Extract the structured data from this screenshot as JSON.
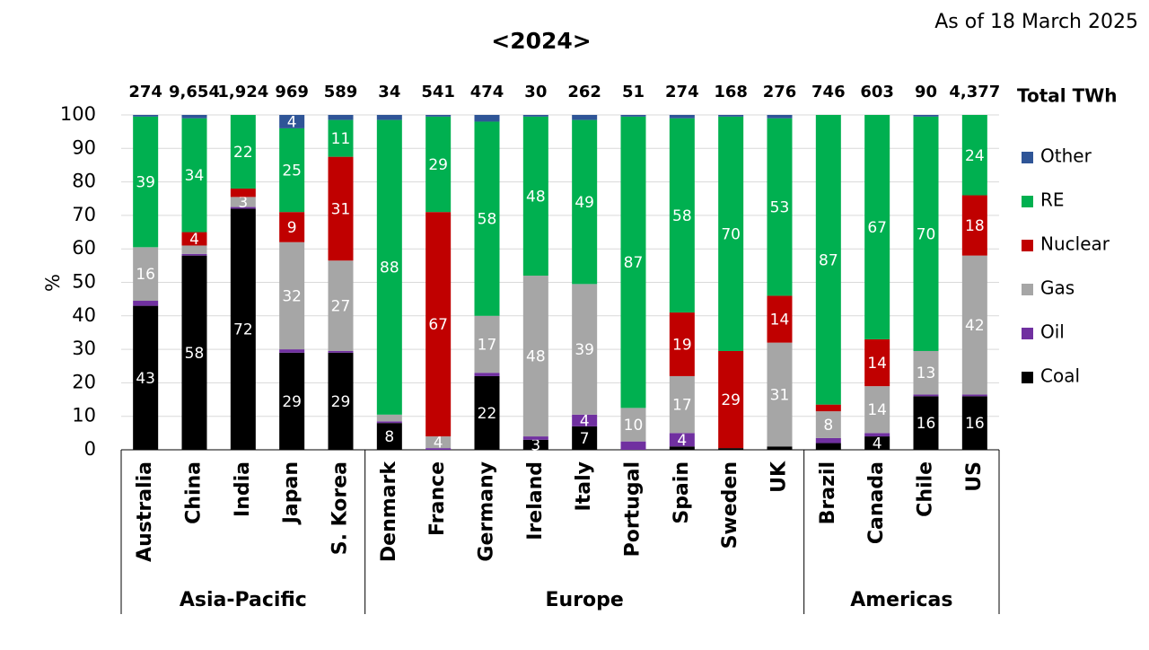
{
  "chart_data": {
    "type": "stacked_bar",
    "title": "<2024>",
    "subtitle": "As of 18 March 2025",
    "y_label": "%",
    "categories": [
      "Australia",
      "China",
      "India",
      "Japan",
      "S. Korea",
      "Denmark",
      "France",
      "Germany",
      "Ireland",
      "Italy",
      "Portugal",
      "Spain",
      "Sweden",
      "UK",
      "Brazil",
      "Canada",
      "Chile",
      "US"
    ],
    "groups": [
      {
        "name": "Asia-Pacific",
        "count": 5
      },
      {
        "name": "Europe",
        "count": 9
      },
      {
        "name": "Americas",
        "count": 4
      }
    ],
    "totals_label": "Total TWh",
    "totals": {
      "values": [
        274,
        9654,
        1924,
        969,
        589,
        34,
        541,
        474,
        30,
        262,
        51,
        274,
        168,
        276,
        746,
        603,
        90,
        4377
      ],
      "value_labels": [
        "274",
        "9,654",
        "1,924",
        "969",
        "589",
        "34",
        "541",
        "474",
        "30",
        "262",
        "51",
        "274",
        "168",
        "276",
        "746",
        "603",
        "90",
        "4,377"
      ]
    },
    "series": [
      {
        "name": "Coal",
        "color": "#000000",
        "values": [
          43,
          58,
          72,
          29,
          29,
          8,
          0,
          22,
          3,
          7,
          0,
          1,
          0.5,
          1,
          2,
          4,
          16,
          16
        ],
        "value_labels": [
          "43",
          "58",
          "72",
          "29",
          "29",
          "8",
          null,
          "22",
          "3",
          "7",
          null,
          null,
          null,
          null,
          null,
          "4",
          "16",
          "16"
        ]
      },
      {
        "name": "Oil",
        "color": "#7030a0",
        "values": [
          1.5,
          0.5,
          0.5,
          1,
          0.5,
          0.5,
          0.5,
          1,
          1,
          3.5,
          2.5,
          4,
          0,
          0,
          1.5,
          1,
          0.5,
          0.5
        ],
        "value_labels": [
          null,
          null,
          null,
          null,
          null,
          null,
          null,
          null,
          null,
          "4",
          null,
          "4",
          null,
          null,
          null,
          null,
          null,
          null
        ]
      },
      {
        "name": "Gas",
        "color": "#a6a6a6",
        "values": [
          16,
          2.5,
          3,
          32,
          27,
          2,
          3.5,
          17,
          48,
          39,
          10,
          17,
          0,
          31,
          8,
          14,
          13,
          41.5
        ],
        "value_labels": [
          "16",
          null,
          "3",
          "32",
          "27",
          null,
          "4",
          "17",
          "48",
          "39",
          "10",
          "17",
          null,
          "31",
          "8",
          "14",
          "13",
          "42"
        ]
      },
      {
        "name": "Nuclear",
        "color": "#c00000",
        "values": [
          0,
          4,
          2.5,
          9,
          31,
          0,
          67,
          0,
          0,
          0,
          0,
          19,
          29,
          14,
          2,
          14,
          0,
          18
        ],
        "value_labels": [
          null,
          "4",
          null,
          "9",
          "31",
          null,
          "67",
          null,
          null,
          null,
          null,
          "19",
          "29",
          "14",
          null,
          "14",
          null,
          "18"
        ]
      },
      {
        "name": "RE",
        "color": "#00b050",
        "values": [
          39,
          34,
          22,
          25,
          11,
          88,
          28.5,
          58,
          47.5,
          49,
          87,
          58,
          70,
          53,
          86.5,
          67,
          70,
          24
        ],
        "value_labels": [
          "39",
          "34",
          "22",
          "25",
          "11",
          "88",
          "29",
          "58",
          "48",
          "49",
          "87",
          "58",
          "70",
          "53",
          "87",
          "67",
          "70",
          "24"
        ]
      },
      {
        "name": "Other",
        "color": "#2f5597",
        "values": [
          0.5,
          1,
          0,
          4,
          1.5,
          1.5,
          0.5,
          2,
          0.5,
          1.5,
          0.5,
          1,
          0.5,
          1,
          0,
          0,
          0.5,
          0
        ],
        "value_labels": [
          null,
          null,
          null,
          "4",
          null,
          null,
          null,
          null,
          null,
          null,
          null,
          null,
          null,
          null,
          null,
          null,
          null,
          null
        ]
      }
    ],
    "ylim": [
      0,
      100
    ],
    "yticks": [
      0,
      10,
      20,
      30,
      40,
      50,
      60,
      70,
      80,
      90,
      100
    ],
    "grid": true
  }
}
